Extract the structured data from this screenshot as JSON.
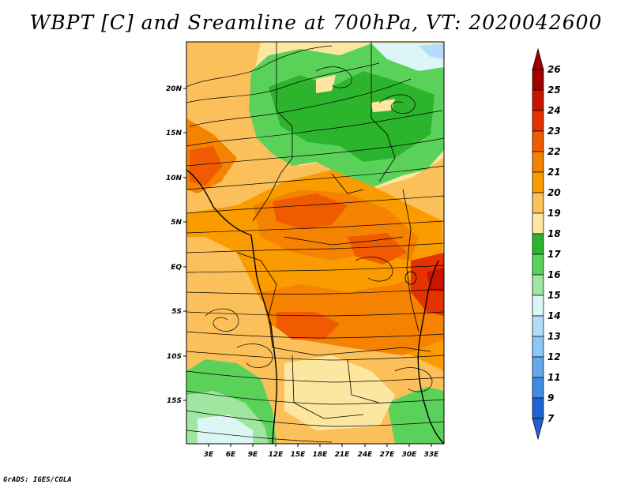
{
  "title": "WBPT [C] and Sreamline at 700hPa, VT: 2020042600",
  "credit": "GrADS: IGES/COLA",
  "map": {
    "lat_ticks": [
      "20N",
      "15N",
      "10N",
      "5N",
      "EQ",
      "5S",
      "10S",
      "15S"
    ],
    "lon_ticks": [
      "3E",
      "6E",
      "9E",
      "12E",
      "15E",
      "18E",
      "21E",
      "24E",
      "27E",
      "30E",
      "33E"
    ]
  },
  "colorbar": {
    "labels": [
      "26",
      "25",
      "24",
      "23",
      "22",
      "21",
      "20",
      "19",
      "18",
      "17",
      "16",
      "15",
      "14",
      "13",
      "12",
      "11",
      "9",
      "7"
    ],
    "colors": [
      "#a00000",
      "#c81400",
      "#e63200",
      "#f05a00",
      "#f58200",
      "#fa9b00",
      "#fbc05a",
      "#fde7a0",
      "#2db42d",
      "#5ad25a",
      "#a0e6a0",
      "#dcf5f5",
      "#b4dcfa",
      "#8cc8f5",
      "#64aaeb",
      "#3c8ce1",
      "#1e64d2"
    ]
  }
}
